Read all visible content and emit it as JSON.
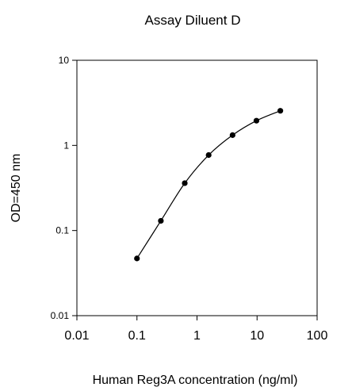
{
  "chart_data": {
    "type": "line",
    "title": "Assay Diluent D",
    "xlabel": "Human Reg3A concentration (ng/ml)",
    "ylabel": "OD=450 nm",
    "x_scale": "log",
    "y_scale": "log",
    "xlim": [
      0.01,
      100
    ],
    "ylim": [
      0.01,
      10
    ],
    "x_ticks": [
      "0.01",
      "0.1",
      "1",
      "10",
      "100"
    ],
    "y_ticks": [
      "0.01",
      "0.1",
      "1",
      "10"
    ],
    "grid": false,
    "legend": "none",
    "line_color": "#000000",
    "series": [
      {
        "x": [
          0.1,
          0.25,
          0.625,
          1.5625,
          3.906,
          9.766,
          24.41
        ],
        "y": [
          0.047,
          0.13,
          0.36,
          0.77,
          1.32,
          1.95,
          2.55
        ]
      }
    ]
  }
}
